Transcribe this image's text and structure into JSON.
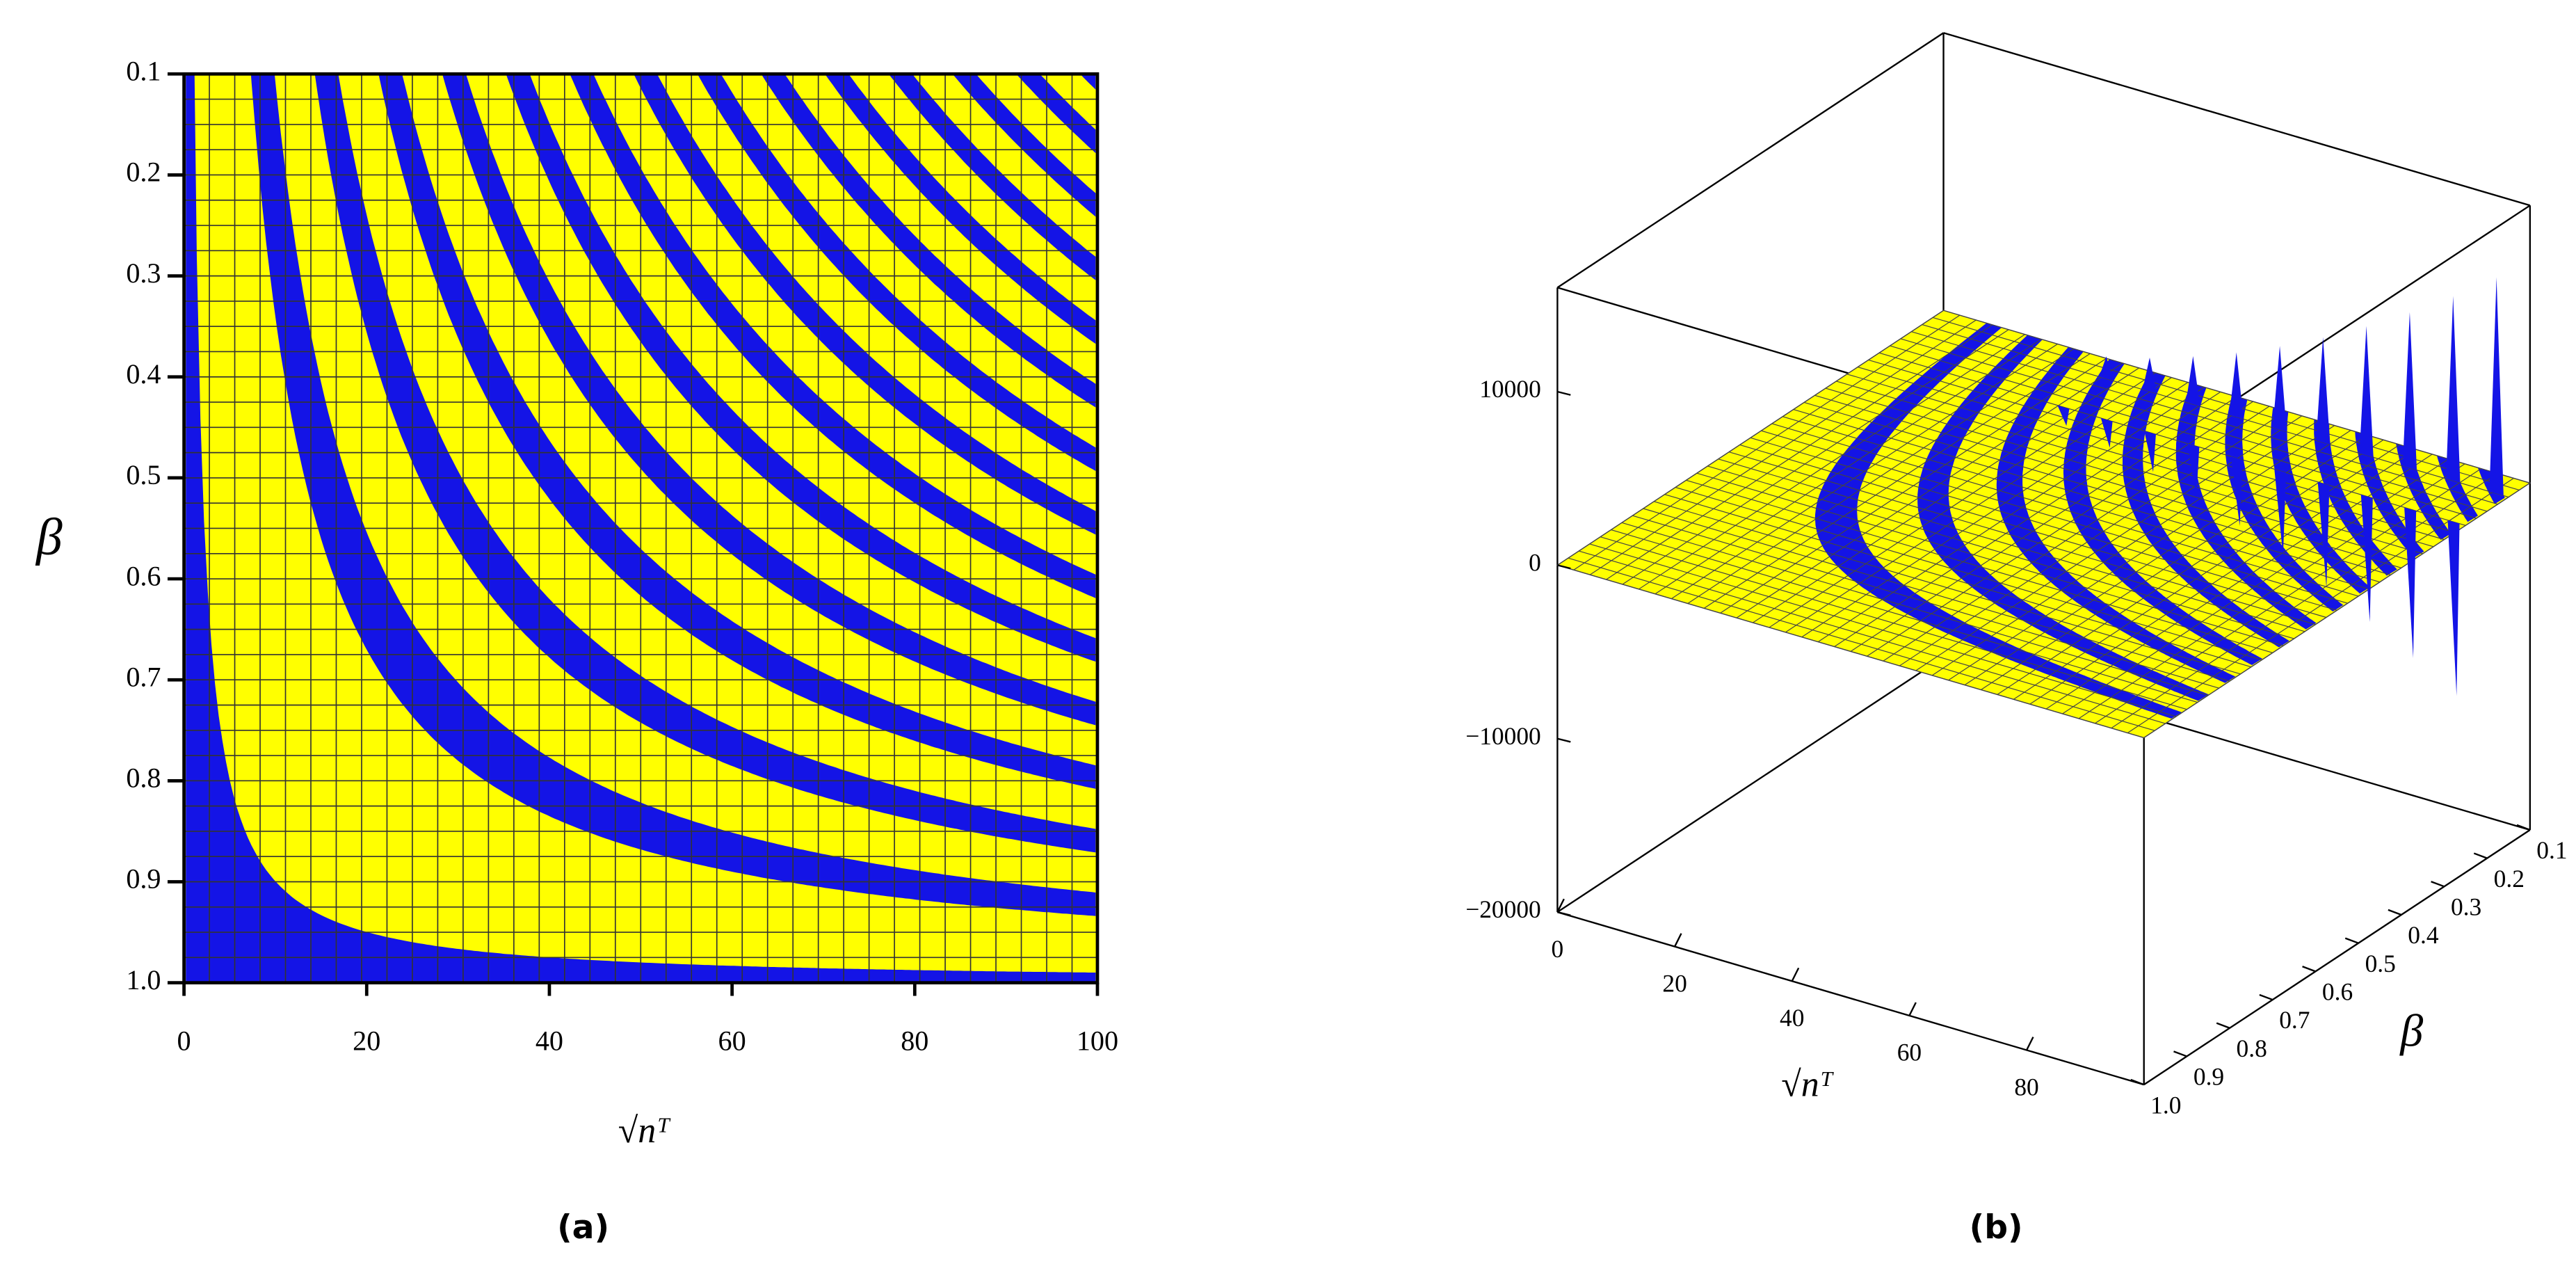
{
  "chart_data": [
    {
      "type": "region",
      "caption": "(a)",
      "x_label": "√nᵀ",
      "y_label": "β",
      "xlim": [
        0,
        100
      ],
      "xticks": [
        0,
        20,
        40,
        60,
        80,
        100
      ],
      "ylim": [
        1,
        0.1
      ],
      "yticks": [
        0.1,
        0.2,
        0.3,
        0.4,
        0.5,
        0.6,
        0.7,
        0.8,
        0.9,
        {
          "value": 1,
          "label": "1.0"
        }
      ],
      "grid": true,
      "region_color": "#1414e6",
      "fill_color": "#ffff00"
    },
    {
      "type": "surface3d",
      "caption": "(b)",
      "x_label": "√nᵀ",
      "y_label": "β",
      "xlim": [
        0,
        100
      ],
      "xticks": [
        0,
        20,
        40,
        60,
        80
      ],
      "ylim": [
        1,
        0.1
      ],
      "yticks": [
        0.1,
        0.2,
        0.3,
        0.4,
        0.5,
        0.6,
        0.7,
        0.8,
        0.9,
        {
          "value": 1,
          "label": "1.0"
        }
      ],
      "zlim": [
        -20000,
        16000
      ],
      "zticks": [
        {
          "value": -20000,
          "label": "−20000"
        },
        {
          "value": -10000,
          "label": "−10000"
        },
        0,
        10000
      ],
      "grid": true,
      "region_color": "#1414e6",
      "fill_color": "#ffff00"
    }
  ]
}
